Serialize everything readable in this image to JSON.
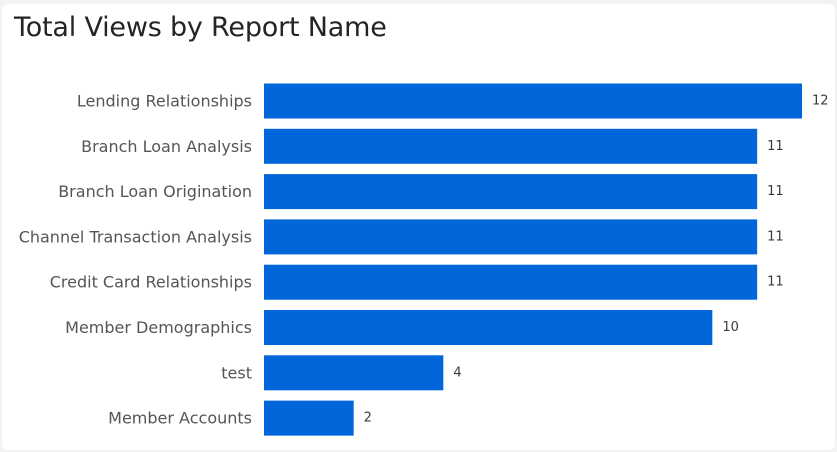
{
  "chart_data": {
    "type": "bar",
    "orientation": "horizontal",
    "title": "Total Views by Report Name",
    "categories": [
      "Lending Relationships",
      "Branch Loan Analysis",
      "Branch Loan Origination",
      "Channel Transaction Analysis",
      "Credit Card Relationships",
      "Member Demographics",
      "test",
      "Member Accounts"
    ],
    "values": [
      12,
      11,
      11,
      11,
      11,
      10,
      4,
      2
    ],
    "xlabel": "",
    "ylabel": "",
    "xlim": [
      0,
      12
    ],
    "bar_color": "#0066d9",
    "grid": false,
    "data_labels": true
  }
}
